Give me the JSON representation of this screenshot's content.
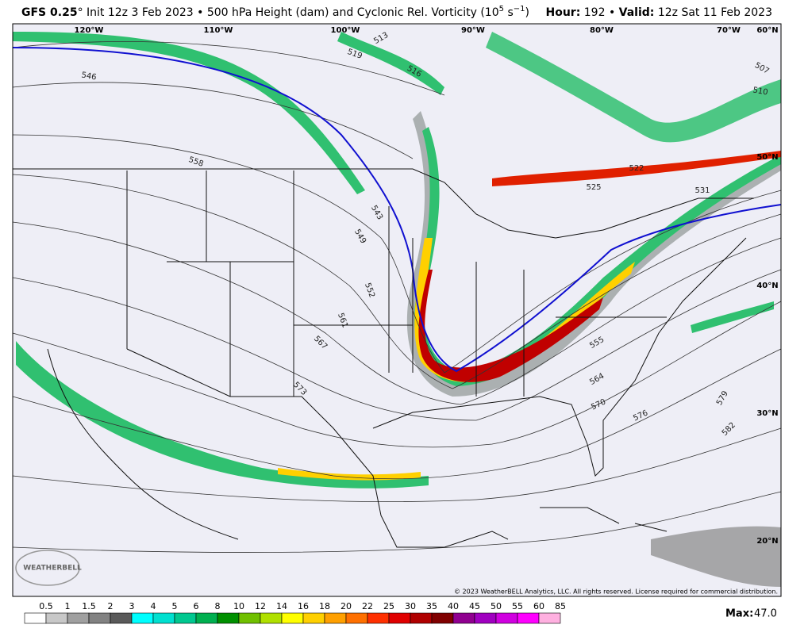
{
  "header": {
    "model": "GFS 0.25",
    "init": "° Init 12z 3 Feb 2023 • 500 hPa Height (dam) and Cyclonic Rel. Vorticity (10",
    "exp1": "5",
    "unit": " s",
    "exp2": "−1",
    "close": ")",
    "hour_label": "Hour:",
    "hour": "192 •",
    "valid_label": "Valid:",
    "valid": "12z Sat 11 Feb 2023"
  },
  "map": {
    "longitudes": [
      "120°W",
      "110°W",
      "100°W",
      "90°W",
      "80°W",
      "70°W",
      "60°N"
    ],
    "latitudes": [
      "50°N",
      "40°N",
      "30°N",
      "20°N"
    ],
    "contour_labels": [
      "513",
      "516",
      "519",
      "546",
      "558",
      "543",
      "549",
      "552",
      "561",
      "567",
      "573",
      "522",
      "525",
      "531",
      "555",
      "564",
      "570",
      "576",
      "579",
      "582",
      "507",
      "510"
    ],
    "logo": "WEATHERBELL",
    "copyright": "© 2023 WeatherBELL Analytics, LLC. All rights reserved. License required for commercial distribution."
  },
  "colorbar": {
    "labels": [
      "0.5",
      "1",
      "1.5",
      "2",
      "3",
      "4",
      "5",
      "6",
      "8",
      "10",
      "12",
      "14",
      "16",
      "18",
      "20",
      "22",
      "25",
      "30",
      "35",
      "40",
      "45",
      "50",
      "55",
      "60",
      "85"
    ],
    "colors": [
      "#ffffff",
      "#c8c8c8",
      "#a0a0a0",
      "#828282",
      "#5a5a5a",
      "#00ffff",
      "#00e0d0",
      "#00c890",
      "#00b050",
      "#009000",
      "#70c000",
      "#b0e000",
      "#ffff00",
      "#ffd000",
      "#ffa000",
      "#ff7000",
      "#ff3000",
      "#e00000",
      "#b00000",
      "#800000",
      "#900090",
      "#a000c0",
      "#d000e0",
      "#ff00ff",
      "#ffb0e0"
    ],
    "max_label": "Max:",
    "max": "47.0"
  }
}
